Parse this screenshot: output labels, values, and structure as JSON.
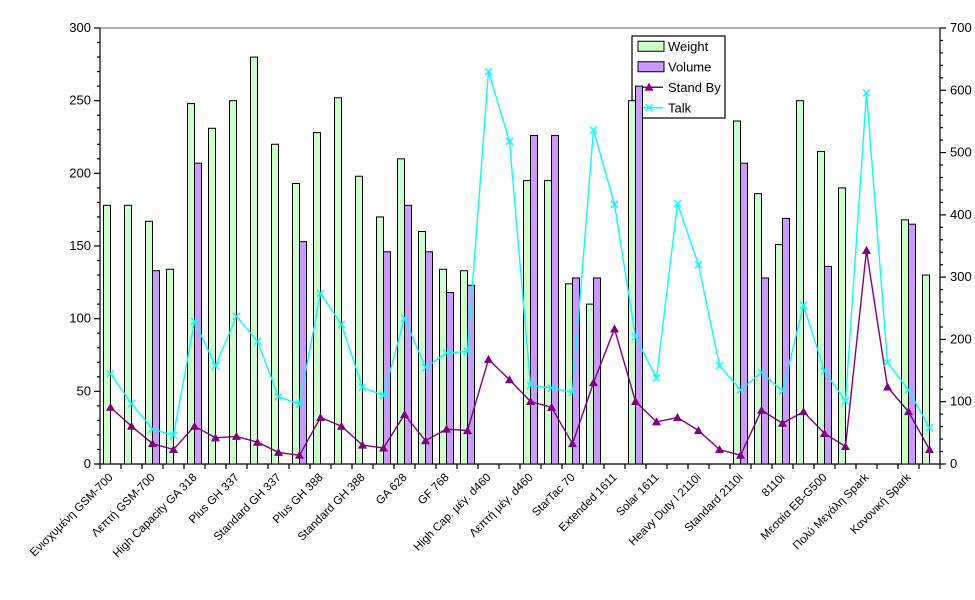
{
  "chart_data": {
    "type": "bar",
    "subtype": "combo grouped-bars + 2 lines",
    "title": "",
    "legend": {
      "position": "top-right-inside-plot",
      "items": [
        {
          "label": "Weight",
          "swatch": "bar",
          "color": "#ccffcc"
        },
        {
          "label": "Volume",
          "swatch": "bar",
          "color": "#cc99ff"
        },
        {
          "label": "Stand By",
          "swatch": "line-triangle",
          "color": "#800080"
        },
        {
          "label": "Talk",
          "swatch": "line-x",
          "color": "#00ffff"
        }
      ]
    },
    "left_axis": {
      "min": 0,
      "max": 300,
      "major_tick": 50,
      "minor_tick": 10,
      "tick_labels": [
        "0",
        "50",
        "100",
        "150",
        "200",
        "250",
        "300"
      ]
    },
    "right_axis": {
      "min": 0,
      "max": 700,
      "major_tick": 100,
      "minor_tick": 20,
      "tick_labels": [
        "0",
        "100",
        "200",
        "300",
        "400",
        "500",
        "600",
        "700"
      ]
    },
    "x_axis": {
      "label_rotation_deg": 45,
      "labels_shown_every": 2
    },
    "categories": [
      "Ενισχυμένη GSM-700",
      "",
      "Λεπτή GSM-700",
      "",
      "High Capacity GA 318",
      "",
      "Plus GH 337",
      "",
      "Standard GH 337",
      "",
      "Plus GH 388",
      "",
      "Standard GH 388",
      "",
      "GA 628",
      "",
      "GF 768",
      "",
      "High Cap. μέγ. d460",
      "",
      "Λεπτή μέγ. d460",
      "",
      "StarTac 70",
      "",
      "Extended 1611",
      "",
      "Solar 1611",
      "",
      "Heavy Duty I 2110i",
      "",
      "Standard 2110i",
      "",
      "8110i",
      "",
      "Μεσαία EB-G500",
      "",
      "Πολύ Μεγάλη Spark",
      "",
      "Κανονική Spark",
      ""
    ],
    "series": [
      {
        "name": "Weight",
        "type": "bar",
        "axis": "left",
        "color": "#ccffcc",
        "values": [
          178,
          178,
          167,
          134,
          248,
          231,
          250,
          280,
          220,
          193,
          228,
          252,
          198,
          170,
          210,
          160,
          134,
          133,
          null,
          null,
          195,
          195,
          124,
          110,
          null,
          250,
          null,
          null,
          null,
          null,
          236,
          186,
          151,
          250,
          215,
          190,
          null,
          null,
          168,
          130
        ]
      },
      {
        "name": "Volume",
        "type": "bar",
        "axis": "left",
        "color": "#cc99ff",
        "values": [
          null,
          null,
          133,
          null,
          207,
          null,
          null,
          null,
          null,
          153,
          null,
          null,
          null,
          146,
          178,
          146,
          118,
          123,
          null,
          null,
          226,
          226,
          128,
          128,
          null,
          260,
          null,
          null,
          null,
          null,
          207,
          128,
          169,
          null,
          136,
          null,
          null,
          null,
          165,
          null
        ]
      },
      {
        "name": "Stand By",
        "type": "line",
        "marker": "triangle",
        "axis": "left",
        "color": "#800080",
        "values": [
          39,
          26,
          14,
          10,
          26,
          18,
          19,
          15,
          8,
          6,
          32,
          26,
          13,
          11,
          34,
          16,
          24,
          23,
          72,
          58,
          43,
          39,
          14,
          56,
          93,
          43,
          29,
          32,
          23,
          10,
          6,
          37,
          28,
          36,
          21,
          12,
          147,
          53,
          36,
          10
        ]
      },
      {
        "name": "Talk",
        "type": "line",
        "marker": "x",
        "axis": "right",
        "color": "#00ffff",
        "values": [
          145,
          97,
          56,
          46,
          229,
          158,
          237,
          197,
          108,
          96,
          274,
          224,
          123,
          110,
          234,
          155,
          178,
          181,
          630,
          518,
          126,
          122,
          115,
          536,
          417,
          204,
          138,
          418,
          320,
          158,
          119,
          147,
          117,
          255,
          149,
          101,
          596,
          163,
          119,
          58
        ]
      }
    ],
    "plot_style": {
      "background": "#ffffff",
      "top_border_color": "#808080",
      "axis_color": "#000000",
      "bar_outline": "#000000"
    }
  }
}
